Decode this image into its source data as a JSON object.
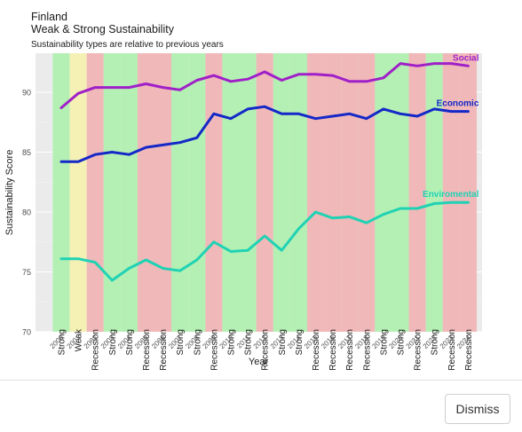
{
  "chart_data": {
    "type": "line",
    "title": "Finland",
    "title_line2": "Weak & Strong Sustainability",
    "subtitle": "Sustainability types are relative to previous years",
    "xlabel": "Year",
    "ylabel": "Sustainability Score",
    "ylim": [
      70,
      93
    ],
    "yticks": [
      70,
      75,
      80,
      85,
      90
    ],
    "grid": true,
    "legend": "inline labels at right end of each line",
    "x": [
      "2000",
      "2001",
      "2002",
      "2003",
      "2004",
      "2005",
      "2006",
      "2007",
      "2008",
      "2009",
      "2010",
      "2011",
      "2012",
      "2013",
      "2014",
      "2015",
      "2016",
      "2017",
      "2018",
      "2019",
      "2020",
      "2021",
      "2022",
      "2023",
      "2024"
    ],
    "categories": [
      "Strong",
      "Weak",
      "Recession",
      "Strong",
      "Strong",
      "Recession",
      "Recession",
      "Strong",
      "Strong",
      "Recession",
      "Strong",
      "Strong",
      "Recession",
      "Strong",
      "Strong",
      "Recession",
      "Recession",
      "Recession",
      "Recession",
      "Strong",
      "Strong",
      "Recession",
      "Strong",
      "Recession",
      "Recession"
    ],
    "category_colors": {
      "Strong": "#b4f0b4",
      "Weak": "#f5f0b4",
      "Recession": "#f0b8b8"
    },
    "series": [
      {
        "name": "Social",
        "color": "#a020c8",
        "values": [
          88.7,
          89.9,
          90.4,
          90.4,
          90.4,
          90.7,
          90.4,
          90.2,
          91.0,
          91.4,
          90.9,
          91.1,
          91.7,
          91.0,
          91.5,
          91.5,
          91.4,
          90.9,
          90.9,
          91.2,
          92.4,
          92.2,
          92.4,
          92.4,
          92.2
        ]
      },
      {
        "name": "Economic",
        "color": "#1428c8",
        "values": [
          84.2,
          84.2,
          84.8,
          85.0,
          84.8,
          85.4,
          85.6,
          85.8,
          86.2,
          88.2,
          87.8,
          88.6,
          88.8,
          88.2,
          88.2,
          87.8,
          88.0,
          88.2,
          87.8,
          88.6,
          88.2,
          88.0,
          88.6,
          88.4,
          88.4
        ]
      },
      {
        "name": "Enviromental",
        "color": "#20d2b4",
        "values": [
          76.1,
          76.1,
          75.8,
          74.3,
          75.3,
          76.0,
          75.3,
          75.1,
          76.0,
          77.5,
          76.7,
          76.8,
          78.0,
          76.8,
          78.6,
          80.0,
          79.5,
          79.6,
          79.1,
          79.8,
          80.3,
          80.3,
          80.7,
          80.8,
          80.8
        ]
      }
    ]
  },
  "footer": {
    "dismiss_label": "Dismiss"
  }
}
